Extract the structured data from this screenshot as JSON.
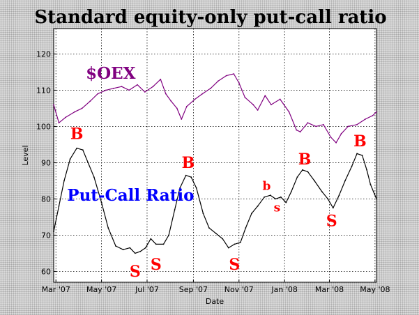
{
  "chart_data": {
    "type": "line",
    "title": "Standard equity-only put-call ratio",
    "xlabel": "Date",
    "ylabel": "Level",
    "ylim": [
      57,
      127
    ],
    "xlim": [
      "2007-02-26",
      "2008-05-03"
    ],
    "yticks": [
      60,
      70,
      80,
      90,
      100,
      110,
      120
    ],
    "xticks": [
      {
        "date": "2007-03-01",
        "label": "Mar '07"
      },
      {
        "date": "2007-05-01",
        "label": "May '07"
      },
      {
        "date": "2007-07-01",
        "label": "Jul '07"
      },
      {
        "date": "2007-09-01",
        "label": "Sep '07"
      },
      {
        "date": "2007-11-01",
        "label": "Nov '07"
      },
      {
        "date": "2008-01-01",
        "label": "Jan '08"
      },
      {
        "date": "2008-03-01",
        "label": "Mar '08"
      },
      {
        "date": "2008-05-01",
        "label": "May '08"
      }
    ],
    "grid": true,
    "series": [
      {
        "name": "$OEX",
        "color": "#800080",
        "label_color": "#800080",
        "points": [
          [
            "2007-02-26",
            106
          ],
          [
            "2007-03-05",
            101
          ],
          [
            "2007-03-14",
            102.5
          ],
          [
            "2007-03-26",
            104
          ],
          [
            "2007-04-05",
            105
          ],
          [
            "2007-04-16",
            107
          ],
          [
            "2007-04-26",
            109
          ],
          [
            "2007-05-07",
            110
          ],
          [
            "2007-05-17",
            110.5
          ],
          [
            "2007-05-28",
            111
          ],
          [
            "2007-06-07",
            110
          ],
          [
            "2007-06-18",
            111.5
          ],
          [
            "2007-06-28",
            109.5
          ],
          [
            "2007-07-09",
            111
          ],
          [
            "2007-07-19",
            113
          ],
          [
            "2007-07-26",
            109
          ],
          [
            "2007-08-02",
            107
          ],
          [
            "2007-08-10",
            105
          ],
          [
            "2007-08-16",
            102
          ],
          [
            "2007-08-23",
            105.5
          ],
          [
            "2007-09-03",
            107.5
          ],
          [
            "2007-09-13",
            109
          ],
          [
            "2007-09-24",
            110.5
          ],
          [
            "2007-10-04",
            112.5
          ],
          [
            "2007-10-15",
            114
          ],
          [
            "2007-10-25",
            114.5
          ],
          [
            "2007-11-01",
            112
          ],
          [
            "2007-11-09",
            108
          ],
          [
            "2007-11-20",
            106
          ],
          [
            "2007-11-26",
            104.5
          ],
          [
            "2007-12-06",
            108.5
          ],
          [
            "2007-12-14",
            106
          ],
          [
            "2007-12-26",
            107.5
          ],
          [
            "2008-01-07",
            104
          ],
          [
            "2008-01-17",
            99
          ],
          [
            "2008-01-22",
            98.5
          ],
          [
            "2008-02-01",
            101
          ],
          [
            "2008-02-12",
            100
          ],
          [
            "2008-02-22",
            100.5
          ],
          [
            "2008-03-03",
            97
          ],
          [
            "2008-03-10",
            95.5
          ],
          [
            "2008-03-17",
            98
          ],
          [
            "2008-03-26",
            100
          ],
          [
            "2008-04-07",
            100.5
          ],
          [
            "2008-04-18",
            102
          ],
          [
            "2008-04-28",
            103
          ],
          [
            "2008-05-03",
            104
          ]
        ]
      },
      {
        "name": "Put-Call Ratio",
        "color": "#000000",
        "label_color": "#0000ff",
        "points": [
          [
            "2007-02-26",
            71
          ],
          [
            "2007-03-05",
            78
          ],
          [
            "2007-03-12",
            85
          ],
          [
            "2007-03-20",
            91
          ],
          [
            "2007-03-29",
            94
          ],
          [
            "2007-04-06",
            93.5
          ],
          [
            "2007-04-13",
            90
          ],
          [
            "2007-04-21",
            86
          ],
          [
            "2007-05-01",
            79
          ],
          [
            "2007-05-10",
            72
          ],
          [
            "2007-05-20",
            67
          ],
          [
            "2007-05-30",
            66
          ],
          [
            "2007-06-08",
            66.5
          ],
          [
            "2007-06-15",
            65
          ],
          [
            "2007-06-22",
            65.5
          ],
          [
            "2007-06-29",
            66.5
          ],
          [
            "2007-07-06",
            69
          ],
          [
            "2007-07-13",
            67.5
          ],
          [
            "2007-07-23",
            67.5
          ],
          [
            "2007-07-30",
            70
          ],
          [
            "2007-08-07",
            77
          ],
          [
            "2007-08-14",
            83
          ],
          [
            "2007-08-22",
            86.5
          ],
          [
            "2007-08-29",
            86
          ],
          [
            "2007-09-05",
            83
          ],
          [
            "2007-09-14",
            76
          ],
          [
            "2007-09-22",
            72
          ],
          [
            "2007-10-01",
            70.5
          ],
          [
            "2007-10-10",
            69
          ],
          [
            "2007-10-18",
            66.5
          ],
          [
            "2007-10-26",
            67.5
          ],
          [
            "2007-11-03",
            68
          ],
          [
            "2007-11-10",
            72
          ],
          [
            "2007-11-18",
            76
          ],
          [
            "2007-11-26",
            78
          ],
          [
            "2007-12-05",
            80.5
          ],
          [
            "2007-12-13",
            81
          ],
          [
            "2007-12-20",
            80
          ],
          [
            "2007-12-27",
            80.5
          ],
          [
            "2008-01-03",
            79
          ],
          [
            "2008-01-10",
            82
          ],
          [
            "2008-01-18",
            86
          ],
          [
            "2008-01-25",
            88
          ],
          [
            "2008-02-01",
            87.5
          ],
          [
            "2008-02-10",
            85
          ],
          [
            "2008-02-20",
            82
          ],
          [
            "2008-02-28",
            80
          ],
          [
            "2008-03-06",
            77.5
          ],
          [
            "2008-03-14",
            81
          ],
          [
            "2008-03-22",
            85
          ],
          [
            "2008-03-31",
            89
          ],
          [
            "2008-04-07",
            92.5
          ],
          [
            "2008-04-14",
            92
          ],
          [
            "2008-04-20",
            88
          ],
          [
            "2008-04-25",
            84
          ],
          [
            "2008-04-29",
            82
          ],
          [
            "2008-05-03",
            80
          ]
        ]
      }
    ],
    "series_labels": [
      {
        "series": "$OEX",
        "text": "$OEX",
        "date": "2007-04-10",
        "level": 113.2
      },
      {
        "series": "Put-Call Ratio",
        "text": "Put-Call Ratio",
        "date": "2007-03-16",
        "level": 79.5
      }
    ],
    "annotations": [
      {
        "text": "B",
        "date": "2007-03-29",
        "level": 96.5,
        "size": "large"
      },
      {
        "text": "S",
        "date": "2007-06-15",
        "level": 58.5,
        "size": "large"
      },
      {
        "text": "S",
        "date": "2007-07-13",
        "level": 60.5,
        "size": "large"
      },
      {
        "text": "B",
        "date": "2007-08-25",
        "level": 88.5,
        "size": "large"
      },
      {
        "text": "S",
        "date": "2007-10-26",
        "level": 60.5,
        "size": "large"
      },
      {
        "text": "b",
        "date": "2007-12-08",
        "level": 82.5,
        "size": "medium"
      },
      {
        "text": "s",
        "date": "2007-12-22",
        "level": 76.5,
        "size": "small"
      },
      {
        "text": "B",
        "date": "2008-01-28",
        "level": 89.5,
        "size": "large"
      },
      {
        "text": "S",
        "date": "2008-03-04",
        "level": 72.5,
        "size": "large"
      },
      {
        "text": "B",
        "date": "2008-04-11",
        "level": 94.5,
        "size": "large"
      }
    ]
  }
}
